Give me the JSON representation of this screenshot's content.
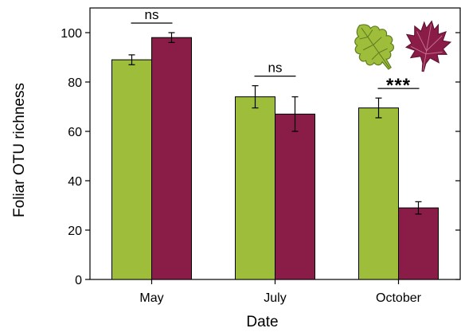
{
  "chart_data": {
    "type": "bar",
    "categories": [
      "May",
      "July",
      "October"
    ],
    "series": [
      {
        "color": "#9dbd3b",
        "values": [
          89,
          74,
          69.5
        ],
        "errors": [
          2,
          4.5,
          4
        ]
      },
      {
        "color": "#8a1c48",
        "values": [
          98,
          67,
          29
        ],
        "errors": [
          2,
          7,
          2.5
        ]
      }
    ],
    "xlabel": "Date",
    "ylabel": "Foliar OTU richness",
    "ylim": [
      0,
      110
    ],
    "yticks": [
      0,
      20,
      40,
      60,
      80,
      100
    ],
    "significance": [
      {
        "category": "May",
        "label": "ns"
      },
      {
        "category": "July",
        "label": "ns"
      },
      {
        "category": "October",
        "label": "***"
      }
    ],
    "icons": [
      "oak-leaf-icon",
      "maple-leaf-icon"
    ],
    "grid": false
  }
}
